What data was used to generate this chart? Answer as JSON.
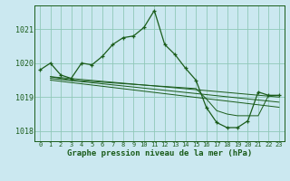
{
  "title": "Graphe pression niveau de la mer (hPa)",
  "bg_color": "#cbe8f0",
  "grid_color": "#90c8b8",
  "line_color": "#1a5c1a",
  "xlim": [
    -0.5,
    23.5
  ],
  "ylim": [
    1017.7,
    1021.7
  ],
  "yticks": [
    1018,
    1019,
    1020,
    1021
  ],
  "xticks": [
    0,
    1,
    2,
    3,
    4,
    5,
    6,
    7,
    8,
    9,
    10,
    11,
    12,
    13,
    14,
    15,
    16,
    17,
    18,
    19,
    20,
    21,
    22,
    23
  ],
  "main_line": {
    "x": [
      0,
      1,
      2,
      3,
      4,
      5,
      6,
      7,
      8,
      9,
      10,
      11,
      12,
      13,
      14,
      15,
      16,
      17,
      18,
      19,
      20,
      21,
      22,
      23
    ],
    "y": [
      1019.8,
      1020.0,
      1019.65,
      1019.55,
      1020.0,
      1019.95,
      1020.2,
      1020.55,
      1020.75,
      1020.8,
      1021.05,
      1021.55,
      1020.55,
      1020.25,
      1019.85,
      1019.5,
      1018.7,
      1018.25,
      1018.1,
      1018.1,
      1018.3,
      1019.15,
      1019.05,
      1019.05
    ]
  },
  "ref_line1": {
    "x": [
      1,
      2,
      3,
      15,
      16,
      17,
      18,
      19,
      21,
      22,
      23
    ],
    "y": [
      1019.6,
      1019.55,
      1019.5,
      1019.25,
      1018.95,
      1018.6,
      1018.5,
      1018.45,
      1018.45,
      1019.05,
      1019.05
    ]
  },
  "ref_line2": {
    "x": [
      1,
      23
    ],
    "y": [
      1019.6,
      1019.0
    ]
  },
  "ref_line3": {
    "x": [
      1,
      23
    ],
    "y": [
      1019.55,
      1018.85
    ]
  },
  "ref_line4": {
    "x": [
      1,
      23
    ],
    "y": [
      1019.5,
      1018.7
    ]
  },
  "fig_width": 3.2,
  "fig_height": 2.0,
  "dpi": 100
}
